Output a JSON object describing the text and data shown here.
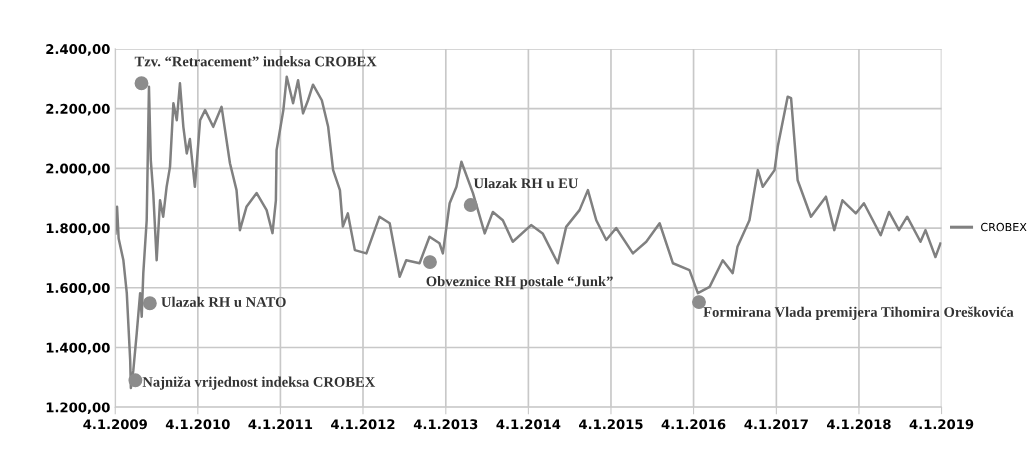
{
  "chart_data": {
    "type": "line",
    "x": [
      "2009-01-05",
      "2009-01-12",
      "2009-01-19",
      "2009-02-09",
      "2009-02-24",
      "2009-03-11",
      "2009-03-14",
      "2009-03-25",
      "2009-04-09",
      "2009-04-24",
      "2009-05-01",
      "2009-05-08",
      "2009-05-23",
      "2009-06-02",
      "2009-06-10",
      "2009-06-21",
      "2009-07-06",
      "2009-07-21",
      "2009-08-04",
      "2009-08-19",
      "2009-09-03",
      "2009-09-18",
      "2009-10-03",
      "2009-10-17",
      "2009-11-01",
      "2009-11-16",
      "2009-11-30",
      "2009-12-22",
      "2010-01-14",
      "2010-02-05",
      "2010-03-13",
      "2010-04-19",
      "2010-05-26",
      "2010-06-24",
      "2010-07-09",
      "2010-08-07",
      "2010-09-21",
      "2010-11-04",
      "2010-11-30",
      "2010-12-15",
      "2010-12-18",
      "2011-01-17",
      "2011-02-01",
      "2011-03-01",
      "2011-03-23",
      "2011-04-14",
      "2011-05-06",
      "2011-05-28",
      "2011-07-06",
      "2011-08-03",
      "2011-08-25",
      "2011-09-24",
      "2011-10-07",
      "2011-10-29",
      "2011-11-29",
      "2012-01-19",
      "2012-03-17",
      "2012-05-01",
      "2012-06-14",
      "2012-07-13",
      "2012-09-10",
      "2012-10-24",
      "2012-12-07",
      "2012-12-22",
      "2013-01-21",
      "2013-02-20",
      "2013-03-14",
      "2013-05-04",
      "2013-06-25",
      "2013-07-31",
      "2013-09-13",
      "2013-10-27",
      "2014-01-16",
      "2014-03-08",
      "2014-05-14",
      "2014-06-20",
      "2014-08-18",
      "2014-09-24",
      "2014-10-31",
      "2014-12-14",
      "2015-01-27",
      "2015-04-11",
      "2015-06-09",
      "2015-08-07",
      "2015-10-05",
      "2015-12-17",
      "2016-01-23",
      "2016-03-15",
      "2016-05-12",
      "2016-06-25",
      "2016-07-16",
      "2016-09-07",
      "2016-10-14",
      "2016-11-05",
      "2016-12-27",
      "2017-01-10",
      "2017-02-23",
      "2017-03-10",
      "2017-04-08",
      "2017-06-06",
      "2017-08-11",
      "2017-09-17",
      "2017-10-23",
      "2017-12-21",
      "2018-01-26",
      "2018-04-10",
      "2018-05-17",
      "2018-06-30",
      "2018-08-05",
      "2018-10-03",
      "2018-10-25",
      "2018-12-08",
      "2018-12-30"
    ],
    "series": [
      {
        "name": "CROBEX",
        "color": "#808080",
        "values": [
          1782,
          1871,
          1765,
          1692,
          1582,
          1357,
          1264,
          1324,
          1448,
          1582,
          1503,
          1649,
          1826,
          2273,
          2028,
          1917,
          1692,
          1893,
          1838,
          1938,
          2005,
          2218,
          2161,
          2285,
          2139,
          2050,
          2098,
          1938,
          2161,
          2195,
          2139,
          2206,
          2017,
          1927,
          1793,
          1871,
          1917,
          1860,
          1783,
          1893,
          2061,
          2195,
          2307,
          2218,
          2295,
          2184,
          2228,
          2280,
          2228,
          2139,
          1994,
          1927,
          1805,
          1849,
          1726,
          1715,
          1838,
          1816,
          1637,
          1692,
          1682,
          1771,
          1749,
          1715,
          1883,
          1938,
          2022,
          1917,
          1782,
          1854,
          1826,
          1754,
          1810,
          1782,
          1682,
          1804,
          1860,
          1927,
          1826,
          1760,
          1800,
          1715,
          1754,
          1816,
          1682,
          1659,
          1582,
          1603,
          1692,
          1649,
          1737,
          1826,
          1994,
          1938,
          1994,
          2072,
          2240,
          2235,
          1960,
          1838,
          1905,
          1793,
          1893,
          1849,
          1883,
          1776,
          1854,
          1793,
          1838,
          1754,
          1793,
          1703,
          1748
        ]
      }
    ],
    "xlim": [
      "2009-01-04",
      "2019-01-04"
    ],
    "xticks": [
      {
        "value": "2009-01-04",
        "label": "4.1.2009"
      },
      {
        "value": "2010-01-04",
        "label": "4.1.2010"
      },
      {
        "value": "2011-01-04",
        "label": "4.1.2011"
      },
      {
        "value": "2012-01-04",
        "label": "4.1.2012"
      },
      {
        "value": "2013-01-04",
        "label": "4.1.2013"
      },
      {
        "value": "2014-01-04",
        "label": "4.1.2014"
      },
      {
        "value": "2015-01-04",
        "label": "4.1.2015"
      },
      {
        "value": "2016-01-04",
        "label": "4.1.2016"
      },
      {
        "value": "2017-01-04",
        "label": "4.1.2017"
      },
      {
        "value": "2018-01-04",
        "label": "4.1.2018"
      },
      {
        "value": "2019-01-04",
        "label": "4.1.2019"
      }
    ],
    "ylim": [
      1200,
      2400
    ],
    "yticks": [
      {
        "value": 1200,
        "label": "1.200,00"
      },
      {
        "value": 1400,
        "label": "1.400,00"
      },
      {
        "value": 1600,
        "label": "1.600,00"
      },
      {
        "value": 1800,
        "label": "1.800,00"
      },
      {
        "value": 2000,
        "label": "2.000,00"
      },
      {
        "value": 2200,
        "label": "2.200,00"
      },
      {
        "value": 2400,
        "label": "2.400,00"
      }
    ],
    "annotations": [
      {
        "text": "Tzv. “Retracement” indeksa CROBEX",
        "x": "2009-04-30",
        "y": 2285
      },
      {
        "text": "Ulazak RH u NATO",
        "x": "2009-06-06",
        "y": 1548
      },
      {
        "text": "Najniža vrijednost indeksa CROBEX",
        "x": "2009-04-03",
        "y": 1290
      },
      {
        "text": "Obveznice RH postale “Junk”",
        "x": "2012-10-26",
        "y": 1686
      },
      {
        "text": "Ulazak RH u EU",
        "x": "2013-04-24",
        "y": 1877
      },
      {
        "text": "Formirana Vlada premijera Tihomira Oreškovića",
        "x": "2016-01-28",
        "y": 1552
      }
    ],
    "grid": true,
    "legend": "right",
    "marker": "none",
    "line_style": "solid"
  }
}
